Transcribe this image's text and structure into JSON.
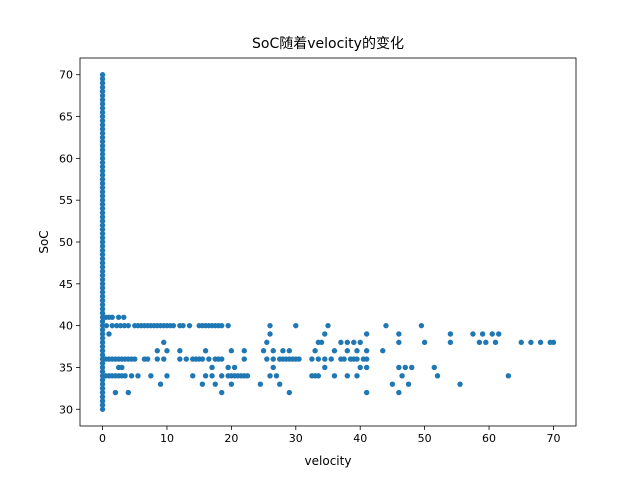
{
  "chart_data": {
    "type": "scatter",
    "title": "SoC随着velocity的变化",
    "xlabel": "velocity",
    "ylabel": "SoC",
    "xlim": [
      -3.5,
      73.5
    ],
    "ylim": [
      28,
      72
    ],
    "xticks": [
      0,
      10,
      20,
      30,
      40,
      50,
      60,
      70
    ],
    "yticks": [
      30,
      35,
      40,
      45,
      50,
      55,
      60,
      65,
      70
    ],
    "grid": false,
    "legend": "none",
    "marker_color": "#1f77b4",
    "points": [
      [
        0,
        30
      ],
      [
        0,
        30.5
      ],
      [
        0,
        31
      ],
      [
        0,
        31.5
      ],
      [
        0,
        32
      ],
      [
        0,
        32.5
      ],
      [
        0,
        33
      ],
      [
        0,
        33.5
      ],
      [
        0,
        34
      ],
      [
        0,
        34.5
      ],
      [
        0,
        35
      ],
      [
        0,
        35.5
      ],
      [
        0,
        36
      ],
      [
        0,
        36.5
      ],
      [
        0,
        37
      ],
      [
        0,
        37.5
      ],
      [
        0,
        38
      ],
      [
        0,
        38.5
      ],
      [
        0,
        39
      ],
      [
        0,
        39.5
      ],
      [
        0,
        40
      ],
      [
        0,
        40.5
      ],
      [
        0,
        41
      ],
      [
        0,
        41.5
      ],
      [
        0,
        42
      ],
      [
        0,
        42.5
      ],
      [
        0,
        43
      ],
      [
        0,
        43.5
      ],
      [
        0,
        44
      ],
      [
        0,
        44.5
      ],
      [
        0,
        45
      ],
      [
        0,
        45.5
      ],
      [
        0,
        46
      ],
      [
        0,
        46.5
      ],
      [
        0,
        47
      ],
      [
        0,
        47.5
      ],
      [
        0,
        48
      ],
      [
        0,
        48.5
      ],
      [
        0,
        49
      ],
      [
        0,
        49.5
      ],
      [
        0,
        50
      ],
      [
        0,
        50.5
      ],
      [
        0,
        51
      ],
      [
        0,
        51.5
      ],
      [
        0,
        52
      ],
      [
        0,
        52.5
      ],
      [
        0,
        53
      ],
      [
        0,
        53.5
      ],
      [
        0,
        54
      ],
      [
        0,
        54.5
      ],
      [
        0,
        55
      ],
      [
        0,
        55.5
      ],
      [
        0,
        56
      ],
      [
        0,
        56.5
      ],
      [
        0,
        57
      ],
      [
        0,
        57.5
      ],
      [
        0,
        58
      ],
      [
        0,
        58.5
      ],
      [
        0,
        59
      ],
      [
        0,
        59.5
      ],
      [
        0,
        60
      ],
      [
        0,
        60.5
      ],
      [
        0,
        61
      ],
      [
        0,
        61.5
      ],
      [
        0,
        62
      ],
      [
        0,
        62.5
      ],
      [
        0,
        63
      ],
      [
        0,
        63.5
      ],
      [
        0,
        64
      ],
      [
        0,
        64.5
      ],
      [
        0,
        65
      ],
      [
        0,
        65.5
      ],
      [
        0,
        66
      ],
      [
        0,
        66.5
      ],
      [
        0,
        67
      ],
      [
        0,
        67.5
      ],
      [
        0,
        68
      ],
      [
        0,
        68.5
      ],
      [
        0,
        69
      ],
      [
        0,
        69.5
      ],
      [
        0,
        70
      ],
      [
        0.5,
        41
      ],
      [
        1,
        41
      ],
      [
        1.5,
        41
      ],
      [
        2.5,
        41
      ],
      [
        3.3,
        41
      ],
      [
        0.6,
        40
      ],
      [
        1.5,
        40
      ],
      [
        2.2,
        40
      ],
      [
        2.8,
        40
      ],
      [
        3.4,
        40
      ],
      [
        4,
        40
      ],
      [
        5,
        40
      ],
      [
        5.5,
        40
      ],
      [
        6,
        40
      ],
      [
        6.5,
        40
      ],
      [
        7,
        40
      ],
      [
        7.5,
        40
      ],
      [
        8,
        40
      ],
      [
        8.5,
        40
      ],
      [
        9,
        40
      ],
      [
        9.5,
        40
      ],
      [
        10,
        40
      ],
      [
        10.5,
        40
      ],
      [
        11,
        40
      ],
      [
        12,
        40
      ],
      [
        12.5,
        40
      ],
      [
        13.5,
        40
      ],
      [
        15,
        40
      ],
      [
        15.5,
        40
      ],
      [
        16,
        40
      ],
      [
        16.5,
        40
      ],
      [
        17,
        40
      ],
      [
        17.5,
        40
      ],
      [
        18,
        40
      ],
      [
        18.5,
        40
      ],
      [
        19.5,
        40
      ],
      [
        26,
        40
      ],
      [
        30,
        40
      ],
      [
        35,
        40
      ],
      [
        44,
        40
      ],
      [
        49.5,
        40
      ],
      [
        1,
        39
      ],
      [
        26,
        39
      ],
      [
        34.5,
        39
      ],
      [
        41,
        39
      ],
      [
        46,
        39
      ],
      [
        54,
        39
      ],
      [
        57.5,
        39
      ],
      [
        59,
        39
      ],
      [
        60.5,
        39
      ],
      [
        61.5,
        39
      ],
      [
        9.5,
        38
      ],
      [
        25.5,
        38
      ],
      [
        33.5,
        38
      ],
      [
        34,
        38
      ],
      [
        37,
        38
      ],
      [
        38,
        38
      ],
      [
        39,
        38
      ],
      [
        40,
        38
      ],
      [
        46,
        38
      ],
      [
        50,
        38
      ],
      [
        54,
        38
      ],
      [
        58.5,
        38
      ],
      [
        59.5,
        38
      ],
      [
        61,
        38
      ],
      [
        65,
        38
      ],
      [
        66.5,
        38
      ],
      [
        68,
        38
      ],
      [
        69.5,
        38
      ],
      [
        70,
        38
      ],
      [
        8.5,
        37
      ],
      [
        10,
        37
      ],
      [
        12,
        37
      ],
      [
        16,
        37
      ],
      [
        20,
        37
      ],
      [
        22,
        37
      ],
      [
        25,
        37
      ],
      [
        26.5,
        37
      ],
      [
        28,
        37
      ],
      [
        29,
        37
      ],
      [
        33,
        37
      ],
      [
        36,
        37
      ],
      [
        38,
        37
      ],
      [
        39.5,
        37
      ],
      [
        41,
        37
      ],
      [
        43.5,
        37
      ],
      [
        0.5,
        36
      ],
      [
        1,
        36
      ],
      [
        1.5,
        36
      ],
      [
        2,
        36
      ],
      [
        2.5,
        36
      ],
      [
        3,
        36
      ],
      [
        3.5,
        36
      ],
      [
        4,
        36
      ],
      [
        4.5,
        36
      ],
      [
        5,
        36
      ],
      [
        6.5,
        36
      ],
      [
        7,
        36
      ],
      [
        8.5,
        36
      ],
      [
        9.5,
        36
      ],
      [
        12,
        36
      ],
      [
        13,
        36
      ],
      [
        14,
        36
      ],
      [
        14.5,
        36
      ],
      [
        15,
        36
      ],
      [
        15.5,
        36
      ],
      [
        16.5,
        36
      ],
      [
        17.5,
        36
      ],
      [
        18,
        36
      ],
      [
        18.5,
        36
      ],
      [
        22,
        36
      ],
      [
        25.5,
        36
      ],
      [
        26.5,
        36
      ],
      [
        27.5,
        36
      ],
      [
        28,
        36
      ],
      [
        28.5,
        36
      ],
      [
        29,
        36
      ],
      [
        29.5,
        36
      ],
      [
        30,
        36
      ],
      [
        30.5,
        36
      ],
      [
        32.5,
        36
      ],
      [
        33.5,
        36
      ],
      [
        34.5,
        36
      ],
      [
        35.5,
        36
      ],
      [
        37,
        36
      ],
      [
        37.5,
        36
      ],
      [
        38.5,
        36
      ],
      [
        39,
        36
      ],
      [
        39.5,
        36
      ],
      [
        40.5,
        36
      ],
      [
        41,
        36
      ],
      [
        2.5,
        35
      ],
      [
        3,
        35
      ],
      [
        17,
        35
      ],
      [
        19.5,
        35
      ],
      [
        20.5,
        35
      ],
      [
        26.5,
        35
      ],
      [
        34.5,
        35
      ],
      [
        40,
        35
      ],
      [
        41,
        35
      ],
      [
        46,
        35
      ],
      [
        47,
        35
      ],
      [
        48,
        35
      ],
      [
        51.5,
        35
      ],
      [
        0.5,
        34
      ],
      [
        1,
        34
      ],
      [
        1.5,
        34
      ],
      [
        2,
        34
      ],
      [
        2.5,
        34
      ],
      [
        3,
        34
      ],
      [
        3.5,
        34
      ],
      [
        4.5,
        34
      ],
      [
        5.5,
        34
      ],
      [
        7.5,
        34
      ],
      [
        10,
        34
      ],
      [
        14,
        34
      ],
      [
        16,
        34
      ],
      [
        17,
        34
      ],
      [
        18.5,
        34
      ],
      [
        19.5,
        34
      ],
      [
        20,
        34
      ],
      [
        20.5,
        34
      ],
      [
        21,
        34
      ],
      [
        21.5,
        34
      ],
      [
        22,
        34
      ],
      [
        22.5,
        34
      ],
      [
        26,
        34
      ],
      [
        27,
        34
      ],
      [
        32.5,
        34
      ],
      [
        33,
        34
      ],
      [
        33.5,
        34
      ],
      [
        36,
        34
      ],
      [
        38,
        34
      ],
      [
        39.5,
        34
      ],
      [
        46.5,
        34
      ],
      [
        52,
        34
      ],
      [
        63,
        34
      ],
      [
        9,
        33
      ],
      [
        15.5,
        33
      ],
      [
        17.5,
        33
      ],
      [
        20,
        33
      ],
      [
        24.5,
        33
      ],
      [
        27.5,
        33
      ],
      [
        45,
        33
      ],
      [
        47.5,
        33
      ],
      [
        55.5,
        33
      ],
      [
        2,
        32
      ],
      [
        4,
        32
      ],
      [
        18.5,
        32
      ],
      [
        29,
        32
      ],
      [
        41,
        32
      ],
      [
        46,
        32
      ]
    ]
  }
}
